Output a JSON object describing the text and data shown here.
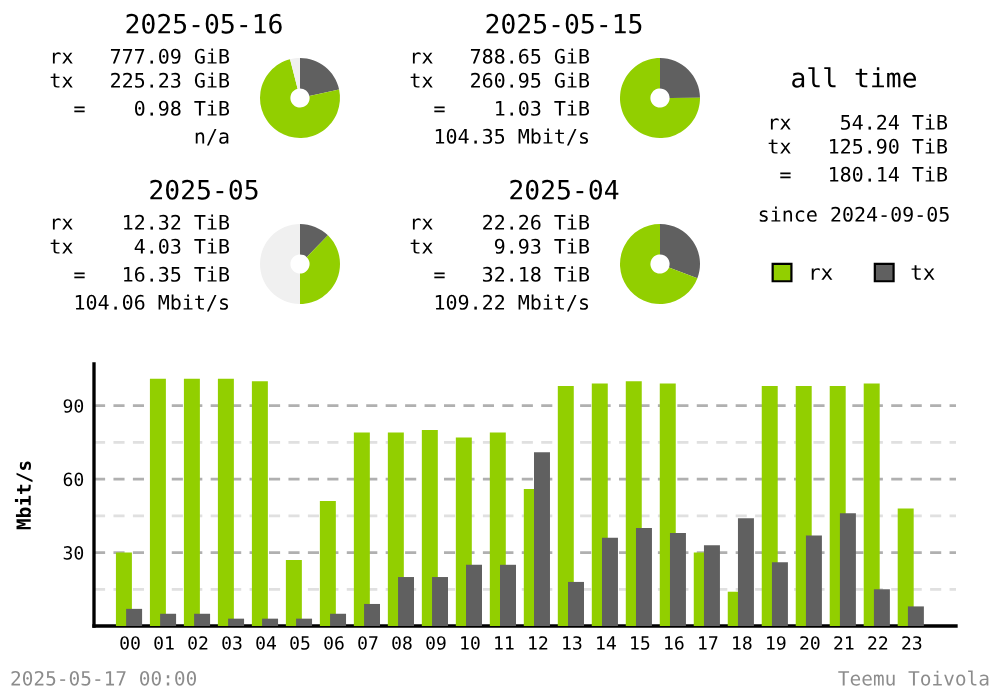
{
  "chart_data": [
    {
      "type": "donut",
      "title": "2025-05-16",
      "categories": [
        "tx",
        "rx",
        null
      ],
      "values": [
        21.6,
        74.4,
        4
      ],
      "colors": [
        "#606060",
        "#92cf00",
        "#f0f0f0"
      ],
      "legend": "right",
      "annotations": [
        "rx   777.09 GiB",
        "tx   225.23 GiB",
        "=    0.98 TiB",
        "n/a"
      ]
    },
    {
      "type": "donut",
      "title": "2025-05-15",
      "categories": [
        null,
        null
      ],
      "values": [
        24.9,
        75.1
      ],
      "colors": [
        "#606060",
        "#92cf00"
      ],
      "legend": false,
      "annotations": [
        "rx   788.65 GiB",
        "tx   260.95 GiB",
        "=    1.03 TiB",
        "104.35 Mbit/s"
      ]
    },
    {
      "type": "donut",
      "title": "2025-05",
      "categories": [
        null,
        null,
        null
      ],
      "values": [
        12.3,
        37.7,
        50
      ],
      "colors": [
        "#606060",
        "#92cf00",
        "#f0f0f0"
      ],
      "legend": false,
      "annotations": [
        "rx    12.32 TiB",
        "tx     4.03 TiB",
        "=   16.35 TiB",
        "104.06 Mbit/s"
      ]
    },
    {
      "type": "donut",
      "title": "2025-04",
      "categories": [
        null,
        null
      ],
      "values": [
        30.8,
        69.2
      ],
      "colors": [
        "#606060",
        "#92cf00"
      ],
      "legend": false,
      "annotations": [
        "rx    22.26 TiB",
        "tx     9.93 TiB",
        "=   32.18 TiB",
        "109.22 Mbit/s"
      ]
    },
    {
      "type": "other",
      "title": "all time",
      "annotations": [
        "rx    54.24 TiB",
        "tx   125.90 TiB",
        "=   180.14 TiB",
        "since 2024-09-05"
      ]
    },
    {
      "type": "bar",
      "ylabel": "Mbit/s",
      "grid": "y",
      "categories": [
        "00",
        "01",
        "02",
        "03",
        "04",
        "05",
        "06",
        "07",
        "08",
        "09",
        "10",
        "11",
        "12",
        "13",
        "14",
        "15",
        "16",
        "17",
        "18",
        "19",
        "20",
        "21",
        "22",
        "23"
      ],
      "ylim": [
        0,
        107
      ],
      "yticks": [
        {
          "value": 15,
          "label": null
        },
        30,
        {
          "value": 45,
          "label": null
        },
        60,
        {
          "value": 75,
          "label": null
        },
        90
      ],
      "series": [
        {
          "color": "#92cf00",
          "values": [
            30,
            101,
            101,
            101,
            100,
            27,
            51,
            79,
            79,
            80,
            77,
            79,
            56,
            98,
            99,
            100,
            99,
            30,
            14,
            98,
            98,
            98,
            99,
            48
          ]
        },
        {
          "color": "#606060",
          "values": [
            7,
            5,
            5,
            3,
            3,
            3,
            5,
            9,
            20,
            20,
            25,
            25,
            71,
            18,
            36,
            40,
            38,
            33,
            44,
            26,
            37,
            46,
            15,
            8
          ]
        }
      ],
      "annotations": [
        "2025-05-17 00:00",
        "Teemu Toivola"
      ]
    }
  ]
}
